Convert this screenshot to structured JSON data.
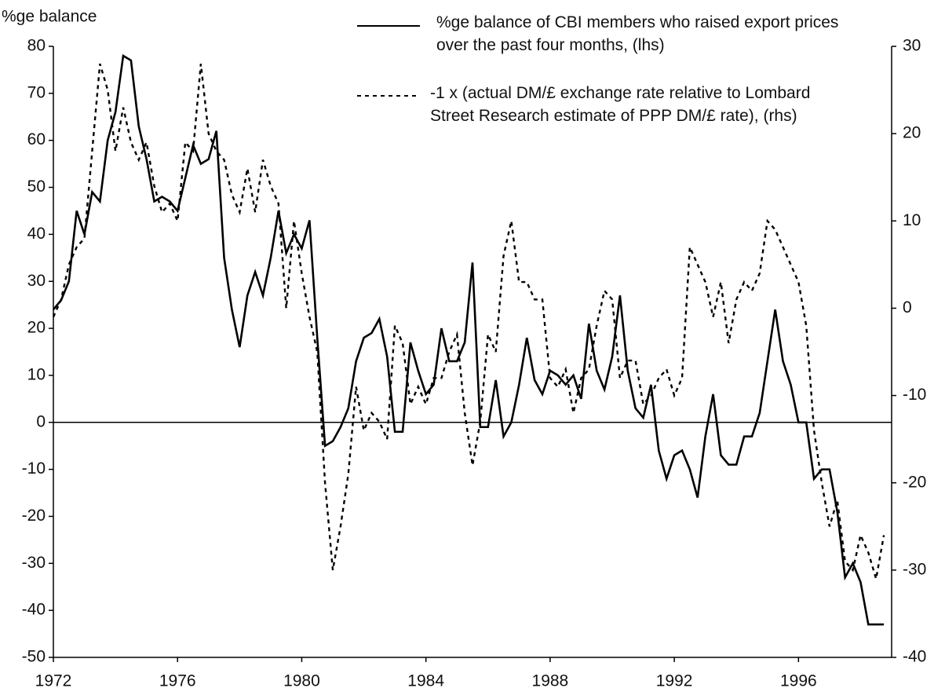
{
  "chart_data": {
    "type": "line",
    "ylabel": "%ge balance",
    "x": [
      1972,
      1972.25,
      1972.5,
      1972.75,
      1973,
      1973.25,
      1973.5,
      1973.75,
      1974,
      1974.25,
      1974.5,
      1974.75,
      1975,
      1975.25,
      1975.5,
      1975.75,
      1976,
      1976.25,
      1976.5,
      1976.75,
      1977,
      1977.25,
      1977.5,
      1977.75,
      1978,
      1978.25,
      1978.5,
      1978.75,
      1979,
      1979.25,
      1979.5,
      1979.75,
      1980,
      1980.25,
      1980.5,
      1980.75,
      1981,
      1981.25,
      1981.5,
      1981.75,
      1982,
      1982.25,
      1982.5,
      1982.75,
      1983,
      1983.25,
      1983.5,
      1983.75,
      1984,
      1984.25,
      1984.5,
      1984.75,
      1985,
      1985.25,
      1985.5,
      1985.75,
      1986,
      1986.25,
      1986.5,
      1986.75,
      1987,
      1987.25,
      1987.5,
      1987.75,
      1988,
      1988.25,
      1988.5,
      1988.75,
      1989,
      1989.25,
      1989.5,
      1989.75,
      1990,
      1990.25,
      1990.5,
      1990.75,
      1991,
      1991.25,
      1991.5,
      1991.75,
      1992,
      1992.25,
      1992.5,
      1992.75,
      1993,
      1993.25,
      1993.5,
      1993.75,
      1994,
      1994.25,
      1994.5,
      1994.75,
      1995,
      1995.25,
      1995.5,
      1995.75,
      1996,
      1996.25,
      1996.5,
      1996.75,
      1997,
      1997.25,
      1997.5,
      1997.75,
      1998,
      1998.25,
      1998.5,
      1998.75
    ],
    "series": [
      {
        "name": "%ge balance of CBI members who raised export prices over the past four months, (lhs)",
        "color": "#000000",
        "dash": false,
        "values": [
          24,
          26,
          30,
          45,
          40,
          49,
          47,
          60,
          66,
          78,
          77,
          63,
          56,
          47,
          48,
          47,
          45,
          52,
          59,
          55,
          56,
          62,
          35,
          24,
          16,
          27,
          32,
          27,
          35,
          45,
          36,
          40,
          37,
          43,
          18,
          -5,
          -4,
          -1,
          3,
          13,
          18,
          19,
          22,
          14,
          -2,
          -2,
          17,
          11,
          6,
          8,
          20,
          13,
          13,
          17,
          34,
          -1,
          -1,
          9,
          -3,
          0,
          8,
          18,
          9,
          6,
          11,
          10,
          8,
          10,
          5,
          21,
          11,
          7,
          14,
          27,
          11,
          3,
          1,
          8,
          -6,
          -12,
          -7,
          -6,
          -10,
          -16,
          -3,
          6,
          -7,
          -9,
          -9,
          -3,
          -3,
          2,
          13,
          24,
          13,
          8,
          0,
          0,
          -12,
          -10,
          -10,
          -19,
          -33,
          -30,
          -34,
          -43,
          -43,
          -43
        ]
      },
      {
        "name": "-1 x (actual DM/£ exchange rate relative to Lombard Street Research estimate of PPP DM/£ rate), (rhs)",
        "color": "#000000",
        "dash": true,
        "axis": "y2",
        "values": [
          -1,
          1,
          5,
          7,
          8,
          18,
          28,
          25,
          18,
          23,
          19,
          17,
          19,
          14,
          11,
          12,
          10,
          19,
          18,
          28,
          20,
          18,
          17,
          13,
          11,
          16,
          11,
          17,
          14,
          12,
          0,
          10,
          4,
          -1,
          -5,
          -20,
          -30,
          -25,
          -19,
          -9,
          -14,
          -12,
          -13,
          -15,
          -2,
          -4,
          -11,
          -9,
          -11,
          -8,
          -8,
          -5,
          -3,
          -12,
          -18,
          -13,
          -3,
          -5,
          6,
          10,
          3,
          3,
          1,
          1,
          -8,
          -9,
          -7,
          -12,
          -8,
          -7,
          -2,
          2,
          1,
          -8,
          -6,
          -6,
          -11,
          -10,
          -8,
          -7,
          -10,
          -8,
          7,
          5,
          3,
          -1,
          3,
          -4,
          1,
          3,
          2,
          4,
          10,
          9,
          7,
          5,
          3,
          -2,
          -14,
          -20,
          -25,
          -22,
          -29,
          -30,
          -26,
          -28,
          -31,
          -26
        ]
      }
    ],
    "xlim": [
      1972,
      1999
    ],
    "xticks": [
      1972,
      1976,
      1980,
      1984,
      1988,
      1992,
      1996
    ],
    "ylim": [
      -50,
      80
    ],
    "yticks": [
      -50,
      -40,
      -30,
      -20,
      -10,
      0,
      10,
      20,
      30,
      40,
      50,
      60,
      70,
      80
    ],
    "y2lim": [
      -40,
      30
    ],
    "y2ticks": [
      -40,
      -30,
      -20,
      -10,
      0,
      10,
      20,
      30
    ]
  }
}
